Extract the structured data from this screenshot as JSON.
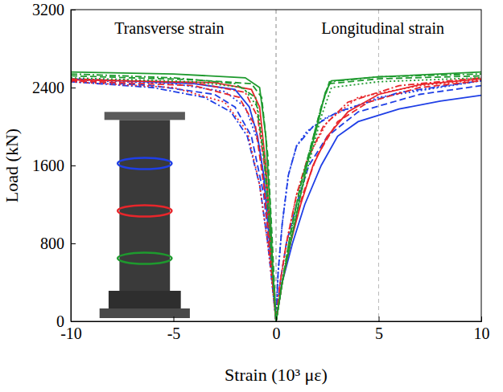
{
  "chart_data": {
    "type": "line",
    "xlabel": "Strain (10³ με)",
    "ylabel": "Load (kN)",
    "annotations": [
      "Transverse strain",
      "Longitudinal strain"
    ],
    "vlines": [
      0,
      5
    ],
    "xlim": [
      -10,
      10
    ],
    "xticks": [
      -10,
      -5,
      0,
      5,
      10
    ],
    "ylim": [
      0,
      3200
    ],
    "yticks": [
      0,
      800,
      1600,
      2400,
      3200
    ],
    "series": [
      {
        "color": "#1f3fe6",
        "line_style": "solid",
        "x": [
          -10,
          -4,
          -2,
          -1.3,
          -0.9,
          -0.6,
          -0.4,
          -0.2,
          0,
          0.3,
          0.8,
          1.4,
          2.2,
          3,
          4,
          6,
          8,
          10
        ],
        "values": [
          2490,
          2440,
          2380,
          2200,
          1900,
          1500,
          1000,
          500,
          0,
          400,
          800,
          1200,
          1600,
          1900,
          2050,
          2180,
          2260,
          2320
        ]
      },
      {
        "color": "#1f3fe6",
        "line_style": "dashed",
        "x": [
          -10,
          -6,
          -3,
          -2,
          -1.2,
          -0.6,
          -0.3,
          0,
          0.2,
          0.5,
          1,
          1.6,
          2.5,
          4,
          7,
          10
        ],
        "values": [
          2470,
          2420,
          2330,
          2200,
          1900,
          1300,
          700,
          0,
          400,
          800,
          1200,
          1600,
          1900,
          2150,
          2330,
          2420
        ]
      },
      {
        "color": "#1f3fe6",
        "line_style": "dotted",
        "x": [
          -10,
          -5,
          -2.5,
          -1.5,
          -0.8,
          -0.3,
          0,
          0.1,
          0.3,
          0.6,
          1,
          1.5,
          2.5,
          5,
          10
        ],
        "values": [
          2480,
          2440,
          2360,
          2200,
          1800,
          900,
          0,
          500,
          1000,
          1500,
          1800,
          1950,
          2100,
          2300,
          2470
        ]
      },
      {
        "color": "#1f3fe6",
        "line_style": "dashdot",
        "x": [
          -10,
          -6,
          -3.5,
          -2.2,
          -1.4,
          -0.8,
          -0.4,
          0,
          0.1,
          0.3,
          0.6,
          1,
          1.8,
          3,
          6,
          10
        ],
        "values": [
          2460,
          2400,
          2300,
          2150,
          1900,
          1400,
          800,
          0,
          500,
          1000,
          1500,
          1800,
          2000,
          2150,
          2350,
          2470
        ]
      },
      {
        "color": "#e8262b",
        "line_style": "solid",
        "x": [
          -10,
          -3,
          -1.2,
          -0.8,
          -0.5,
          -0.25,
          0,
          0.3,
          0.7,
          1.2,
          1.8,
          2.5,
          3.5,
          5,
          7,
          10
        ],
        "values": [
          2480,
          2450,
          2380,
          2200,
          1600,
          800,
          0,
          400,
          800,
          1200,
          1600,
          1900,
          2150,
          2330,
          2430,
          2490
        ]
      },
      {
        "color": "#e8262b",
        "line_style": "dashed",
        "x": [
          -10,
          -4,
          -1.8,
          -1,
          -0.6,
          -0.3,
          0,
          0.3,
          0.8,
          1.3,
          2,
          3,
          4.5,
          7,
          10
        ],
        "values": [
          2470,
          2420,
          2300,
          2000,
          1400,
          700,
          0,
          400,
          900,
          1300,
          1700,
          2050,
          2250,
          2400,
          2470
        ]
      },
      {
        "color": "#e8262b",
        "line_style": "dotted",
        "x": [
          -10,
          -5,
          -2.5,
          -1.4,
          -0.8,
          -0.35,
          0,
          0.2,
          0.6,
          1,
          1.6,
          2.5,
          4,
          7,
          10
        ],
        "values": [
          2460,
          2400,
          2250,
          1950,
          1400,
          700,
          0,
          400,
          900,
          1300,
          1700,
          2050,
          2300,
          2420,
          2480
        ]
      },
      {
        "color": "#e8262b",
        "line_style": "dashdot",
        "x": [
          -10,
          -4,
          -1.5,
          -0.9,
          -0.5,
          -0.25,
          0,
          0.2,
          0.5,
          1,
          1.5,
          2.3,
          3.5,
          6,
          10
        ],
        "values": [
          2490,
          2450,
          2350,
          2100,
          1500,
          700,
          0,
          400,
          800,
          1300,
          1650,
          2000,
          2250,
          2420,
          2500
        ]
      },
      {
        "color": "#1e9a2e",
        "line_style": "solid",
        "x": [
          -10,
          -5,
          -1.5,
          -0.8,
          -0.5,
          -0.3,
          -0.15,
          0,
          0.3,
          0.7,
          1.1,
          1.5,
          2,
          2.4,
          2.7,
          5,
          10
        ],
        "values": [
          2560,
          2540,
          2500,
          2400,
          1900,
          1200,
          500,
          0,
          400,
          800,
          1200,
          1600,
          2000,
          2350,
          2470,
          2510,
          2560
        ]
      },
      {
        "color": "#1e9a2e",
        "line_style": "dashed",
        "x": [
          -10,
          -4,
          -1.2,
          -0.7,
          -0.4,
          -0.2,
          0,
          0.3,
          0.7,
          1.2,
          1.7,
          2.2,
          2.6,
          5,
          10
        ],
        "values": [
          2520,
          2480,
          2440,
          2300,
          1700,
          900,
          0,
          400,
          900,
          1400,
          1800,
          2200,
          2440,
          2490,
          2520
        ]
      },
      {
        "color": "#1e9a2e",
        "line_style": "dotted",
        "x": [
          -10,
          -4,
          -1.6,
          -0.9,
          -0.5,
          -0.25,
          0,
          0.3,
          0.7,
          1.2,
          1.7,
          2.2,
          2.7,
          5,
          10
        ],
        "values": [
          2500,
          2460,
          2400,
          2200,
          1600,
          800,
          0,
          400,
          850,
          1300,
          1700,
          2100,
          2400,
          2460,
          2500
        ]
      },
      {
        "color": "#1e9a2e",
        "line_style": "dashdot",
        "x": [
          -10,
          -5,
          -2,
          -1,
          -0.6,
          -0.3,
          0,
          0.3,
          0.7,
          1.2,
          1.7,
          2.2,
          2.6,
          5,
          10
        ],
        "values": [
          2540,
          2500,
          2440,
          2300,
          1700,
          900,
          0,
          400,
          900,
          1400,
          1800,
          2200,
          2460,
          2510,
          2540
        ]
      }
    ]
  }
}
